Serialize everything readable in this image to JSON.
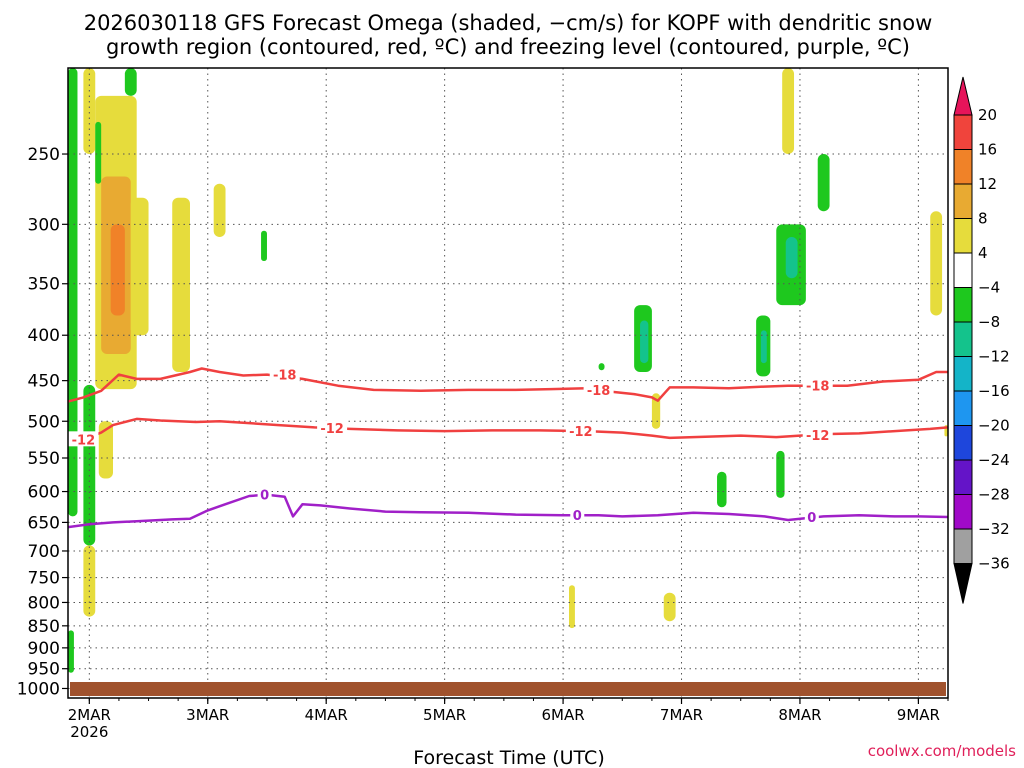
{
  "chart_data": {
    "type": "heatmap",
    "title_line1": "2026030118 GFS Forecast Omega (shaded, −cm/s) for KOPF with dendritic snow",
    "title_line2": "growth region (contoured, red, ºC) and freezing level (contoured, purple, ºC)",
    "xlabel": "Forecast Time (UTC)",
    "credit": "coolwx.com/models",
    "x_ticks": [
      {
        "day": 2,
        "label": "2MAR",
        "sublabel": "2026"
      },
      {
        "day": 3,
        "label": "3MAR"
      },
      {
        "day": 4,
        "label": "4MAR"
      },
      {
        "day": 5,
        "label": "5MAR"
      },
      {
        "day": 6,
        "label": "6MAR"
      },
      {
        "day": 7,
        "label": "7MAR"
      },
      {
        "day": 8,
        "label": "8MAR"
      },
      {
        "day": 9,
        "label": "9MAR"
      }
    ],
    "xlim_days": [
      1.82,
      9.25
    ],
    "y_ticks": [
      "250",
      "300",
      "350",
      "400",
      "450",
      "500",
      "550",
      "600",
      "650",
      "700",
      "750",
      "800",
      "850",
      "900",
      "950",
      "1000"
    ],
    "ylim_hpa": [
      200,
      1025
    ],
    "y_axis": "pressure (hPa), log scale, inverted",
    "grid": true,
    "colorbar": {
      "levels": [
        "20",
        "16",
        "12",
        "8",
        "4",
        "−4",
        "−8",
        "−12",
        "−16",
        "−20",
        "−24",
        "−28",
        "−32",
        "−36"
      ],
      "colors": [
        "#e6145a",
        "#f0443c",
        "#f08228",
        "#e8aa32",
        "#e6dc3c",
        "#ffffff",
        "#1ec81e",
        "#14c38c",
        "#14b4c8",
        "#1e96f0",
        "#1e46dc",
        "#6414c8",
        "#a00ac8",
        "#a0a0a0",
        "#000000"
      ]
    },
    "shading_colors": {
      "yellow": "#e6dc3c",
      "gold": "#e8aa32",
      "orange": "#f08228",
      "green": "#1ec81e",
      "teal": "#14c38c",
      "ground": "#a0522d"
    },
    "contours": [
      {
        "label": "-18",
        "color": "#f04040",
        "points": [
          [
            1.82,
            475
          ],
          [
            1.95,
            470
          ],
          [
            2.1,
            462
          ],
          [
            2.25,
            443
          ],
          [
            2.4,
            448
          ],
          [
            2.6,
            448
          ],
          [
            2.85,
            440
          ],
          [
            2.95,
            436
          ],
          [
            3.1,
            440
          ],
          [
            3.3,
            444
          ],
          [
            3.5,
            443
          ],
          [
            3.8,
            448
          ],
          [
            4.1,
            456
          ],
          [
            4.4,
            461
          ],
          [
            4.8,
            462
          ],
          [
            5.2,
            461
          ],
          [
            5.6,
            461
          ],
          [
            5.9,
            460
          ],
          [
            6.2,
            459
          ],
          [
            6.4,
            463
          ],
          [
            6.6,
            466
          ],
          [
            6.75,
            470
          ],
          [
            6.8,
            474
          ],
          [
            6.9,
            458
          ],
          [
            7.1,
            458
          ],
          [
            7.4,
            459
          ],
          [
            7.7,
            457
          ],
          [
            7.9,
            456
          ],
          [
            8.1,
            456
          ],
          [
            8.4,
            456
          ],
          [
            8.7,
            451
          ],
          [
            9.0,
            449
          ],
          [
            9.15,
            440
          ],
          [
            9.25,
            440
          ]
        ]
      },
      {
        "label": "-12",
        "color": "#f04040",
        "points": [
          [
            1.82,
            525
          ],
          [
            1.95,
            524
          ],
          [
            2.1,
            515
          ],
          [
            2.2,
            505
          ],
          [
            2.4,
            497
          ],
          [
            2.6,
            499
          ],
          [
            2.9,
            501
          ],
          [
            3.1,
            500
          ],
          [
            3.3,
            502
          ],
          [
            3.6,
            505
          ],
          [
            3.9,
            508
          ],
          [
            4.2,
            510
          ],
          [
            4.6,
            512
          ],
          [
            5.0,
            513
          ],
          [
            5.4,
            512
          ],
          [
            5.8,
            512
          ],
          [
            6.2,
            513
          ],
          [
            6.5,
            515
          ],
          [
            6.75,
            519
          ],
          [
            6.9,
            522
          ],
          [
            7.1,
            521
          ],
          [
            7.5,
            519
          ],
          [
            7.8,
            521
          ],
          [
            8.0,
            519
          ],
          [
            8.2,
            517
          ],
          [
            8.5,
            516
          ],
          [
            8.8,
            513
          ],
          [
            9.1,
            510
          ],
          [
            9.25,
            508
          ]
        ]
      },
      {
        "label": "0",
        "color": "#a020c8",
        "points": [
          [
            1.82,
            658
          ],
          [
            2.0,
            653
          ],
          [
            2.2,
            650
          ],
          [
            2.4,
            648
          ],
          [
            2.7,
            645
          ],
          [
            2.85,
            644
          ],
          [
            3.0,
            630
          ],
          [
            3.15,
            620
          ],
          [
            3.35,
            607
          ],
          [
            3.5,
            605
          ],
          [
            3.65,
            608
          ],
          [
            3.72,
            640
          ],
          [
            3.8,
            620
          ],
          [
            3.95,
            622
          ],
          [
            4.2,
            627
          ],
          [
            4.5,
            632
          ],
          [
            4.8,
            633
          ],
          [
            5.2,
            634
          ],
          [
            5.6,
            637
          ],
          [
            6.0,
            638
          ],
          [
            6.3,
            638
          ],
          [
            6.5,
            640
          ],
          [
            6.8,
            638
          ],
          [
            7.1,
            634
          ],
          [
            7.4,
            636
          ],
          [
            7.7,
            640
          ],
          [
            7.9,
            646
          ],
          [
            8.2,
            640
          ],
          [
            8.5,
            638
          ],
          [
            8.8,
            640
          ],
          [
            9.0,
            640
          ],
          [
            9.25,
            641
          ]
        ]
      }
    ],
    "contour_labels": [
      {
        "text": "-18",
        "day": 3.65,
        "hpa": 443
      },
      {
        "text": "-18",
        "day": 6.3,
        "hpa": 461
      },
      {
        "text": "-18",
        "day": 8.15,
        "hpa": 456
      },
      {
        "text": "-12",
        "day": 1.95,
        "hpa": 524
      },
      {
        "text": "-12",
        "day": 4.05,
        "hpa": 509
      },
      {
        "text": "-12",
        "day": 6.15,
        "hpa": 513
      },
      {
        "text": "-12",
        "day": 8.15,
        "hpa": 518
      },
      {
        "text": "0",
        "day": 3.48,
        "hpa": 605
      },
      {
        "text": "0",
        "day": 6.12,
        "hpa": 638
      },
      {
        "text": "0",
        "day": 8.1,
        "hpa": 641
      }
    ],
    "omega_regions": [
      {
        "level": 4,
        "day_range": [
          2.05,
          2.4
        ],
        "hpa_range": [
          215,
          460
        ]
      },
      {
        "level": 8,
        "day_range": [
          2.1,
          2.35
        ],
        "hpa_range": [
          265,
          420
        ]
      },
      {
        "level": 12,
        "day_range": [
          2.18,
          2.3
        ],
        "hpa_range": [
          300,
          380
        ]
      },
      {
        "level": 4,
        "day_range": [
          1.95,
          2.05
        ],
        "hpa_range": [
          200,
          250
        ]
      },
      {
        "level": 4,
        "day_range": [
          2.35,
          2.5
        ],
        "hpa_range": [
          280,
          400
        ]
      },
      {
        "level": 4,
        "day_range": [
          2.7,
          2.85
        ],
        "hpa_range": [
          280,
          440
        ]
      },
      {
        "level": 4,
        "day_range": [
          3.05,
          3.15
        ],
        "hpa_range": [
          270,
          310
        ]
      },
      {
        "level": 4,
        "day_range": [
          2.08,
          2.2
        ],
        "hpa_range": [
          500,
          580
        ]
      },
      {
        "level": 4,
        "day_range": [
          1.95,
          2.05
        ],
        "hpa_range": [
          690,
          830
        ]
      },
      {
        "level": 4,
        "day_range": [
          7.85,
          7.95
        ],
        "hpa_range": [
          200,
          250
        ]
      },
      {
        "level": 4,
        "day_range": [
          9.1,
          9.2
        ],
        "hpa_range": [
          290,
          380
        ]
      },
      {
        "level": 4,
        "day_range": [
          6.75,
          6.82
        ],
        "hpa_range": [
          465,
          510
        ]
      },
      {
        "level": 4,
        "day_range": [
          6.05,
          6.1
        ],
        "hpa_range": [
          765,
          855
        ]
      },
      {
        "level": 4,
        "day_range": [
          6.85,
          6.95
        ],
        "hpa_range": [
          780,
          840
        ]
      },
      {
        "level": 4,
        "day_range": [
          9.22,
          9.25
        ],
        "hpa_range": [
          505,
          520
        ]
      },
      {
        "level": -4,
        "day_range": [
          1.82,
          1.9
        ],
        "hpa_range": [
          200,
          640
        ]
      },
      {
        "level": -4,
        "day_range": [
          1.95,
          2.05
        ],
        "hpa_range": [
          455,
          690
        ]
      },
      {
        "level": -4,
        "day_range": [
          1.82,
          1.87
        ],
        "hpa_range": [
          860,
          960
        ]
      },
      {
        "level": -4,
        "day_range": [
          2.3,
          2.4
        ],
        "hpa_range": [
          200,
          215
        ]
      },
      {
        "level": -4,
        "day_range": [
          2.05,
          2.1
        ],
        "hpa_range": [
          230,
          270
        ]
      },
      {
        "level": -4,
        "day_range": [
          3.45,
          3.5
        ],
        "hpa_range": [
          305,
          330
        ]
      },
      {
        "level": -4,
        "day_range": [
          6.6,
          6.75
        ],
        "hpa_range": [
          370,
          440
        ]
      },
      {
        "level": -4,
        "day_range": [
          7.63,
          7.75
        ],
        "hpa_range": [
          380,
          445
        ]
      },
      {
        "level": -4,
        "day_range": [
          7.8,
          8.05
        ],
        "hpa_range": [
          300,
          370
        ]
      },
      {
        "level": -4,
        "day_range": [
          8.15,
          8.25
        ],
        "hpa_range": [
          250,
          290
        ]
      },
      {
        "level": -4,
        "day_range": [
          7.3,
          7.38
        ],
        "hpa_range": [
          570,
          625
        ]
      },
      {
        "level": -4,
        "day_range": [
          7.8,
          7.87
        ],
        "hpa_range": [
          540,
          610
        ]
      },
      {
        "level": -4,
        "day_range": [
          6.3,
          6.35
        ],
        "hpa_range": [
          430,
          438
        ]
      },
      {
        "level": -8,
        "day_range": [
          6.65,
          6.72
        ],
        "hpa_range": [
          385,
          430
        ]
      },
      {
        "level": -8,
        "day_range": [
          7.67,
          7.72
        ],
        "hpa_range": [
          395,
          430
        ]
      },
      {
        "level": -8,
        "day_range": [
          7.88,
          7.98
        ],
        "hpa_range": [
          310,
          345
        ]
      }
    ]
  }
}
